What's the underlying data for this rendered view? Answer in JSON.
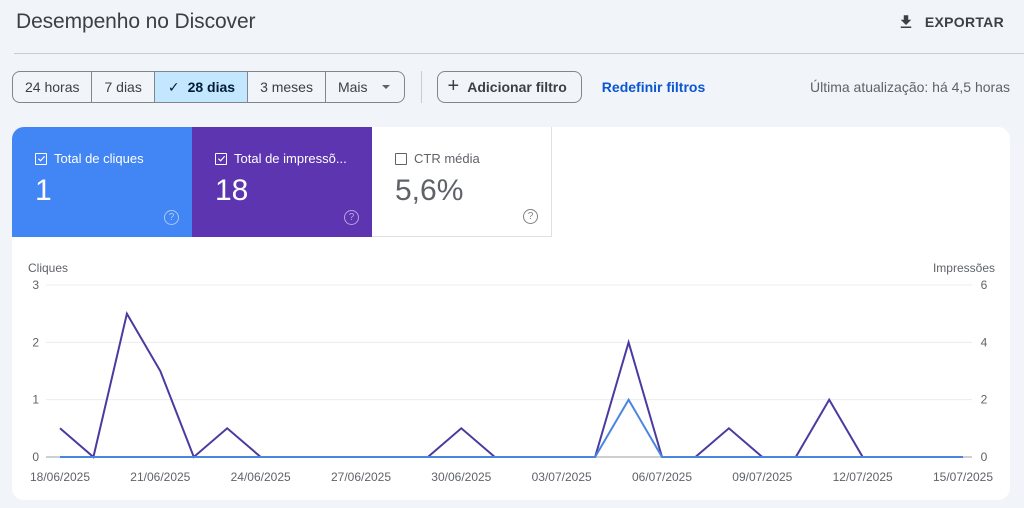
{
  "header": {
    "title": "Desempenho no Discover",
    "export_label": "EXPORTAR",
    "export_icon": "download-icon"
  },
  "toolbar": {
    "date_ranges": [
      {
        "label": "24 horas",
        "active": false
      },
      {
        "label": "7 dias",
        "active": false
      },
      {
        "label": "28 dias",
        "active": true
      },
      {
        "label": "3 meses",
        "active": false
      },
      {
        "label": "Mais",
        "active": false,
        "dropdown": true
      }
    ],
    "check_glyph": "✓",
    "add_filter_label": "Adicionar filtro",
    "add_filter_icon": "+",
    "reset_filters_label": "Redefinir filtros",
    "last_update": "Última atualização: há 4,5 horas"
  },
  "metrics": [
    {
      "label": "Total de cliques",
      "value": "1",
      "checked": true,
      "color": "#4285f4",
      "help_icon": "?"
    },
    {
      "label": "Total de impressõ...",
      "value": "18",
      "checked": true,
      "color": "#5e35b1",
      "help_icon": "?"
    },
    {
      "label": "CTR média",
      "value": "5,6%",
      "checked": false,
      "color": "#ffffff",
      "help_icon": "?"
    }
  ],
  "chart_data": {
    "type": "line",
    "title": "",
    "left_axis_label": "Cliques",
    "right_axis_label": "Impressões",
    "left_ylim": [
      0,
      3
    ],
    "right_ylim": [
      0,
      6
    ],
    "left_ticks": [
      "0",
      "1",
      "2",
      "3"
    ],
    "right_ticks": [
      "0",
      "2",
      "4",
      "6"
    ],
    "grid": true,
    "x_tick_labels": [
      "18/06/2025",
      "21/06/2025",
      "24/06/2025",
      "27/06/2025",
      "30/06/2025",
      "03/07/2025",
      "06/07/2025",
      "09/07/2025",
      "12/07/2025",
      "15/07/2025"
    ],
    "x": [
      "18/06",
      "19/06",
      "20/06",
      "21/06",
      "22/06",
      "23/06",
      "24/06",
      "25/06",
      "26/06",
      "27/06",
      "28/06",
      "29/06",
      "30/06",
      "01/07",
      "02/07",
      "03/07",
      "04/07",
      "05/07",
      "06/07",
      "07/07",
      "08/07",
      "09/07",
      "10/07",
      "11/07",
      "12/07",
      "13/07",
      "14/07",
      "15/07"
    ],
    "series": [
      {
        "name": "Cliques",
        "axis": "left",
        "color": "#4a86e0",
        "values": [
          0,
          0,
          0,
          0,
          0,
          0,
          0,
          0,
          0,
          0,
          0,
          0,
          0,
          0,
          0,
          0,
          0,
          1,
          0,
          0,
          0,
          0,
          0,
          0,
          0,
          0,
          0,
          0
        ]
      },
      {
        "name": "Impressões",
        "axis": "right",
        "color": "#4b3aa0",
        "values": [
          1,
          0,
          5,
          3,
          0,
          1,
          0,
          0,
          0,
          0,
          0,
          0,
          1,
          0,
          0,
          0,
          0,
          4,
          0,
          0,
          1,
          0,
          0,
          2,
          0,
          0,
          0,
          0
        ]
      }
    ]
  }
}
